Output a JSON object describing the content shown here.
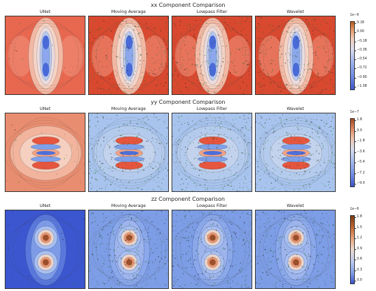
{
  "chart_data": [
    {
      "type": "heatmap",
      "title": "xx Component Comparison",
      "panels": [
        "UNet",
        "Moving Average",
        "Lowpass Filter",
        "Wavelet"
      ],
      "colorbar": {
        "exponent": "1e−6",
        "ticks": [
          "0.18",
          "0.00",
          "−0.18",
          "−0.36",
          "−0.54",
          "−0.72",
          "−0.90",
          "−1.08"
        ],
        "range": [
          -1.08,
          0.18
        ]
      },
      "colors": {
        "background": "#e4604c",
        "noisy_background": "#d64530"
      }
    },
    {
      "type": "heatmap",
      "title": "yy Component Comparison",
      "panels": [
        "UNet",
        "Moving Average",
        "Lowpass Filter",
        "Wavelet"
      ],
      "colorbar": {
        "exponent": "1e−7",
        "ticks": [
          "1.8",
          "0.0",
          "−1.8",
          "−3.6",
          "−5.4",
          "−7.2",
          "−9.0"
        ],
        "range": [
          -9.0,
          1.8
        ]
      },
      "colors": {
        "background": "#e78a6c",
        "noisy_background": "#a3c2ef"
      }
    },
    {
      "type": "heatmap",
      "title": "zz Component Comparison",
      "panels": [
        "UNet",
        "Moving Average",
        "Lowpass Filter",
        "Wavelet"
      ],
      "colorbar": {
        "exponent": "1e−6",
        "ticks": [
          "1.8",
          "1.5",
          "1.2",
          "0.9",
          "0.6",
          "0.3",
          "0.0"
        ],
        "range": [
          0.0,
          1.8
        ]
      },
      "colors": {
        "background": "#3b56cf",
        "noisy_background": "#7b9ce6"
      }
    }
  ]
}
